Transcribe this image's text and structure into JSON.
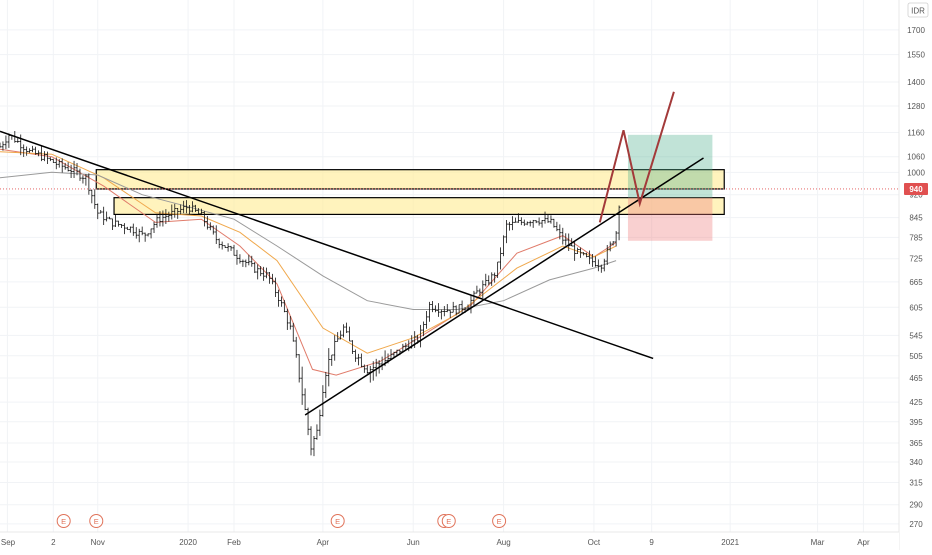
{
  "chart_data": {
    "type": "ohlc",
    "currency": "IDR",
    "last_price": 940,
    "last_price_label": "940",
    "y_axis": {
      "scale": "log",
      "ylim": [
        262,
        1900
      ],
      "ticks": [
        1700,
        1550,
        1400,
        1280,
        1160,
        1060,
        1000,
        920,
        845,
        785,
        725,
        665,
        605,
        545,
        505,
        465,
        425,
        395,
        365,
        340,
        315,
        290,
        270
      ]
    },
    "x_axis": {
      "range": [
        "2019-08-27",
        "2021-04-25"
      ],
      "labels": [
        {
          "text": "Sep",
          "date": "2019-09-01"
        },
        {
          "text": "2",
          "date": "2019-10-02"
        },
        {
          "text": "Nov",
          "date": "2019-11-01"
        },
        {
          "text": "2020",
          "date": "2020-01-01"
        },
        {
          "text": "Feb",
          "date": "2020-02-01"
        },
        {
          "text": "Apr",
          "date": "2020-04-01"
        },
        {
          "text": "Jun",
          "date": "2020-06-01"
        },
        {
          "text": "Aug",
          "date": "2020-08-01"
        },
        {
          "text": "Oct",
          "date": "2020-10-01"
        },
        {
          "text": "9",
          "date": "2020-11-09"
        },
        {
          "text": "2021",
          "date": "2021-01-01"
        },
        {
          "text": "Mar",
          "date": "2021-03-01"
        },
        {
          "text": "Apr",
          "date": "2021-04-01"
        }
      ]
    },
    "events": [
      {
        "date": "2019-10-09",
        "label": "E"
      },
      {
        "date": "2019-10-31",
        "label": "E"
      },
      {
        "date": "2020-04-11",
        "label": "E"
      },
      {
        "date": "2020-06-22",
        "label": "D"
      },
      {
        "date": "2020-06-25",
        "label": "E"
      },
      {
        "date": "2020-07-29",
        "label": "E"
      }
    ],
    "price_path": [
      [
        "2019-08-27",
        1100
      ],
      [
        "2019-09-02",
        1150
      ],
      [
        "2019-09-08",
        1120
      ],
      [
        "2019-09-16",
        1080
      ],
      [
        "2019-09-25",
        1060
      ],
      [
        "2019-10-05",
        1030
      ],
      [
        "2019-10-14",
        1010
      ],
      [
        "2019-10-24",
        980
      ],
      [
        "2019-11-01",
        860
      ],
      [
        "2019-11-10",
        830
      ],
      [
        "2019-11-22",
        815
      ],
      [
        "2019-12-02",
        790
      ],
      [
        "2019-12-12",
        840
      ],
      [
        "2019-12-22",
        860
      ],
      [
        "2020-01-01",
        880
      ],
      [
        "2020-01-10",
        850
      ],
      [
        "2020-01-20",
        780
      ],
      [
        "2020-02-01",
        740
      ],
      [
        "2020-02-14",
        700
      ],
      [
        "2020-02-24",
        680
      ],
      [
        "2020-03-03",
        620
      ],
      [
        "2020-03-10",
        560
      ],
      [
        "2020-03-16",
        470
      ],
      [
        "2020-03-24",
        360
      ],
      [
        "2020-03-28",
        380
      ],
      [
        "2020-04-02",
        470
      ],
      [
        "2020-04-08",
        520
      ],
      [
        "2020-04-15",
        560
      ],
      [
        "2020-04-22",
        510
      ],
      [
        "2020-05-02",
        480
      ],
      [
        "2020-05-15",
        500
      ],
      [
        "2020-05-25",
        520
      ],
      [
        "2020-06-05",
        540
      ],
      [
        "2020-06-12",
        610
      ],
      [
        "2020-06-20",
        600
      ],
      [
        "2020-06-30",
        600
      ],
      [
        "2020-07-08",
        610
      ],
      [
        "2020-07-14",
        640
      ],
      [
        "2020-07-20",
        660
      ],
      [
        "2020-07-27",
        690
      ],
      [
        "2020-08-03",
        820
      ],
      [
        "2020-08-12",
        830
      ],
      [
        "2020-08-22",
        840
      ],
      [
        "2020-09-02",
        830
      ],
      [
        "2020-09-10",
        780
      ],
      [
        "2020-09-20",
        740
      ],
      [
        "2020-09-28",
        720
      ],
      [
        "2020-10-06",
        710
      ],
      [
        "2020-10-12",
        760
      ],
      [
        "2020-10-16",
        800
      ],
      [
        "2020-10-19",
        940
      ]
    ],
    "indicators": {
      "ema_fast": {
        "color": "#e07b6a",
        "values": [
          [
            "2019-08-27",
            1090
          ],
          [
            "2019-10-01",
            1060
          ],
          [
            "2019-11-05",
            950
          ],
          [
            "2019-12-10",
            830
          ],
          [
            "2020-01-10",
            840
          ],
          [
            "2020-02-05",
            760
          ],
          [
            "2020-03-01",
            660
          ],
          [
            "2020-03-25",
            480
          ],
          [
            "2020-04-10",
            470
          ],
          [
            "2020-05-10",
            495
          ],
          [
            "2020-06-10",
            550
          ],
          [
            "2020-07-10",
            610
          ],
          [
            "2020-08-10",
            740
          ],
          [
            "2020-09-10",
            790
          ],
          [
            "2020-10-01",
            730
          ],
          [
            "2020-10-16",
            770
          ]
        ]
      },
      "ema_mid": {
        "color": "#f0a84c",
        "values": [
          [
            "2019-08-27",
            1080
          ],
          [
            "2019-10-01",
            1070
          ],
          [
            "2019-11-05",
            980
          ],
          [
            "2019-12-10",
            860
          ],
          [
            "2020-01-10",
            850
          ],
          [
            "2020-02-05",
            800
          ],
          [
            "2020-03-01",
            720
          ],
          [
            "2020-04-01",
            560
          ],
          [
            "2020-05-01",
            510
          ],
          [
            "2020-06-01",
            540
          ],
          [
            "2020-07-01",
            590
          ],
          [
            "2020-08-10",
            700
          ],
          [
            "2020-09-10",
            760
          ],
          [
            "2020-10-01",
            730
          ],
          [
            "2020-10-16",
            760
          ]
        ]
      },
      "sma_slow": {
        "color": "#9a9a9a",
        "values": [
          [
            "2019-08-27",
            980
          ],
          [
            "2019-10-01",
            1000
          ],
          [
            "2019-11-01",
            990
          ],
          [
            "2019-12-01",
            920
          ],
          [
            "2020-01-01",
            880
          ],
          [
            "2020-02-01",
            840
          ],
          [
            "2020-03-01",
            760
          ],
          [
            "2020-04-01",
            680
          ],
          [
            "2020-05-01",
            620
          ],
          [
            "2020-06-01",
            600
          ],
          [
            "2020-07-01",
            600
          ],
          [
            "2020-08-01",
            620
          ],
          [
            "2020-09-01",
            670
          ],
          [
            "2020-10-01",
            700
          ],
          [
            "2020-10-16",
            720
          ]
        ]
      }
    },
    "drawings": {
      "downtrend_line": [
        [
          "2019-08-27",
          1165
        ],
        [
          "2020-11-10",
          500
        ]
      ],
      "uptrend_line": [
        [
          "2020-03-20",
          405
        ],
        [
          "2020-12-14",
          1055
        ]
      ],
      "resistance_zones": [
        {
          "from": "2019-10-31",
          "to": "2020-12-28",
          "low": 940,
          "high": 1010
        },
        {
          "from": "2019-11-12",
          "to": "2020-12-28",
          "low": 855,
          "high": 910
        }
      ],
      "projection_path": [
        [
          "2020-10-05",
          830
        ],
        [
          "2020-10-21",
          1170
        ],
        [
          "2020-11-01",
          890
        ],
        [
          "2020-11-24",
          1350
        ]
      ],
      "position_box": {
        "from": "2020-10-24",
        "to": "2020-12-20",
        "entry": 910,
        "target": 1150,
        "stop": 775
      }
    }
  }
}
